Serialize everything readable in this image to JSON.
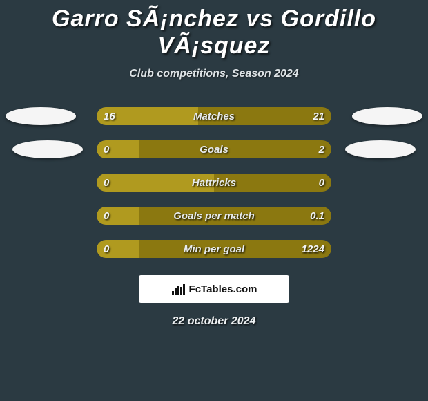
{
  "title": "Garro SÃ¡nchez vs Gordillo VÃ¡squez",
  "subtitle": "Club competitions, Season 2024",
  "background_color": "#2b3a42",
  "bar_track_width": 340,
  "bar_track_height": 26,
  "colors": {
    "left": "#b09a1f",
    "right": "#8b7810",
    "avatar": "#f5f5f5",
    "attribution_bg": "#ffffff"
  },
  "rows": [
    {
      "label": "Matches",
      "left_value": "16",
      "right_value": "21",
      "left_pct": 43.2,
      "right_pct": 56.8,
      "show_left_avatar": true,
      "show_right_avatar": true,
      "avatar_class_left": "avatar-left-1",
      "avatar_class_right": "avatar-right-1"
    },
    {
      "label": "Goals",
      "left_value": "0",
      "right_value": "2",
      "left_pct": 18.0,
      "right_pct": 82.0,
      "show_left_avatar": true,
      "show_right_avatar": true,
      "avatar_class_left": "avatar-left-2",
      "avatar_class_right": "avatar-right-2"
    },
    {
      "label": "Hattricks",
      "left_value": "0",
      "right_value": "0",
      "left_pct": 50.0,
      "right_pct": 50.0,
      "show_left_avatar": false,
      "show_right_avatar": false,
      "avatar_class_left": "",
      "avatar_class_right": ""
    },
    {
      "label": "Goals per match",
      "left_value": "0",
      "right_value": "0.1",
      "left_pct": 18.0,
      "right_pct": 82.0,
      "show_left_avatar": false,
      "show_right_avatar": false,
      "avatar_class_left": "",
      "avatar_class_right": ""
    },
    {
      "label": "Min per goal",
      "left_value": "0",
      "right_value": "1224",
      "left_pct": 18.0,
      "right_pct": 82.0,
      "show_left_avatar": false,
      "show_right_avatar": false,
      "avatar_class_left": "",
      "avatar_class_right": ""
    }
  ],
  "attribution": {
    "text": "FcTables.com"
  },
  "date": "22 october 2024"
}
